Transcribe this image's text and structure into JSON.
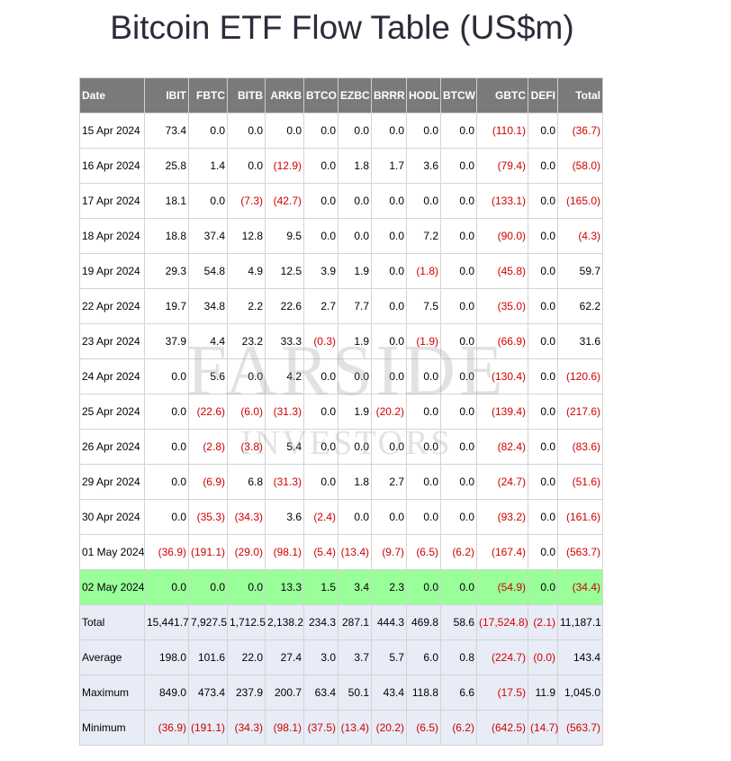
{
  "title": "Bitcoin ETF Flow Table (US$m)",
  "watermark": {
    "line1": "FARSIDE",
    "line2": "INVESTORS"
  },
  "colors": {
    "header_bg": "#7a7a7a",
    "highlight_row": "#99ff99",
    "summary_bg": "#e8ecf6",
    "negative": "#d10000"
  },
  "chart_data": {
    "type": "table",
    "columns": [
      "Date",
      "IBIT",
      "FBTC",
      "BITB",
      "ARKB",
      "BTCO",
      "EZBC",
      "BRRR",
      "HODL",
      "BTCW",
      "GBTC",
      "DEFI",
      "Total"
    ],
    "rows": [
      {
        "cells": [
          "15 Apr 2024",
          "73.4",
          "0.0",
          "0.0",
          "0.0",
          "0.0",
          "0.0",
          "0.0",
          "0.0",
          "0.0",
          "(110.1)",
          "0.0",
          "(36.7)"
        ]
      },
      {
        "cells": [
          "16 Apr 2024",
          "25.8",
          "1.4",
          "0.0",
          "(12.9)",
          "0.0",
          "1.8",
          "1.7",
          "3.6",
          "0.0",
          "(79.4)",
          "0.0",
          "(58.0)"
        ]
      },
      {
        "cells": [
          "17 Apr 2024",
          "18.1",
          "0.0",
          "(7.3)",
          "(42.7)",
          "0.0",
          "0.0",
          "0.0",
          "0.0",
          "0.0",
          "(133.1)",
          "0.0",
          "(165.0)"
        ]
      },
      {
        "cells": [
          "18 Apr 2024",
          "18.8",
          "37.4",
          "12.8",
          "9.5",
          "0.0",
          "0.0",
          "0.0",
          "7.2",
          "0.0",
          "(90.0)",
          "0.0",
          "(4.3)"
        ]
      },
      {
        "cells": [
          "19 Apr 2024",
          "29.3",
          "54.8",
          "4.9",
          "12.5",
          "3.9",
          "1.9",
          "0.0",
          "(1.8)",
          "0.0",
          "(45.8)",
          "0.0",
          "59.7"
        ]
      },
      {
        "cells": [
          "22 Apr 2024",
          "19.7",
          "34.8",
          "2.2",
          "22.6",
          "2.7",
          "7.7",
          "0.0",
          "7.5",
          "0.0",
          "(35.0)",
          "0.0",
          "62.2"
        ]
      },
      {
        "cells": [
          "23 Apr 2024",
          "37.9",
          "4.4",
          "23.2",
          "33.3",
          "(0.3)",
          "1.9",
          "0.0",
          "(1.9)",
          "0.0",
          "(66.9)",
          "0.0",
          "31.6"
        ]
      },
      {
        "cells": [
          "24 Apr 2024",
          "0.0",
          "5.6",
          "0.0",
          "4.2",
          "0.0",
          "0.0",
          "0.0",
          "0.0",
          "0.0",
          "(130.4)",
          "0.0",
          "(120.6)"
        ]
      },
      {
        "cells": [
          "25 Apr 2024",
          "0.0",
          "(22.6)",
          "(6.0)",
          "(31.3)",
          "0.0",
          "1.9",
          "(20.2)",
          "0.0",
          "0.0",
          "(139.4)",
          "0.0",
          "(217.6)"
        ]
      },
      {
        "cells": [
          "26 Apr 2024",
          "0.0",
          "(2.8)",
          "(3.8)",
          "5.4",
          "0.0",
          "0.0",
          "0.0",
          "0.0",
          "0.0",
          "(82.4)",
          "0.0",
          "(83.6)"
        ]
      },
      {
        "cells": [
          "29 Apr 2024",
          "0.0",
          "(6.9)",
          "6.8",
          "(31.3)",
          "0.0",
          "1.8",
          "2.7",
          "0.0",
          "0.0",
          "(24.7)",
          "0.0",
          "(51.6)"
        ]
      },
      {
        "cells": [
          "30 Apr 2024",
          "0.0",
          "(35.3)",
          "(34.3)",
          "3.6",
          "(2.4)",
          "0.0",
          "0.0",
          "0.0",
          "0.0",
          "(93.2)",
          "0.0",
          "(161.6)"
        ]
      },
      {
        "cells": [
          "01 May 2024",
          "(36.9)",
          "(191.1)",
          "(29.0)",
          "(98.1)",
          "(5.4)",
          "(13.4)",
          "(9.7)",
          "(6.5)",
          "(6.2)",
          "(167.4)",
          "0.0",
          "(563.7)"
        ]
      },
      {
        "cells": [
          "02 May 2024",
          "0.0",
          "0.0",
          "0.0",
          "13.3",
          "1.5",
          "3.4",
          "2.3",
          "0.0",
          "0.0",
          "(54.9)",
          "0.0",
          "(34.4)"
        ],
        "highlight": true
      },
      {
        "cells": [
          "Total",
          "15,441.7",
          "7,927.5",
          "1,712.5",
          "2,138.2",
          "234.3",
          "287.1",
          "444.3",
          "469.8",
          "58.6",
          "(17,524.8)",
          "(2.1)",
          "11,187.1"
        ],
        "summary": true
      },
      {
        "cells": [
          "Average",
          "198.0",
          "101.6",
          "22.0",
          "27.4",
          "3.0",
          "3.7",
          "5.7",
          "6.0",
          "0.8",
          "(224.7)",
          "(0.0)",
          "143.4"
        ],
        "summary": true
      },
      {
        "cells": [
          "Maximum",
          "849.0",
          "473.4",
          "237.9",
          "200.7",
          "63.4",
          "50.1",
          "43.4",
          "118.8",
          "6.6",
          "(17.5)",
          "11.9",
          "1,045.0"
        ],
        "summary": true
      },
      {
        "cells": [
          "Minimum",
          "(36.9)",
          "(191.1)",
          "(34.3)",
          "(98.1)",
          "(37.5)",
          "(13.4)",
          "(20.2)",
          "(6.5)",
          "(6.2)",
          "(642.5)",
          "(14.7)",
          "(563.7)"
        ],
        "summary": true
      }
    ]
  }
}
